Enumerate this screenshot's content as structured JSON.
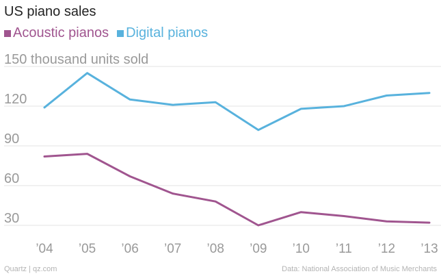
{
  "chart_data": {
    "type": "line",
    "title": "US piano sales",
    "ylabel": "thousand units sold",
    "categories": [
      "’04",
      "’05",
      "’06",
      "’07",
      "’08",
      "’09",
      "’10",
      "’11",
      "’12",
      "’13"
    ],
    "yticks": [
      30,
      60,
      90,
      120,
      150
    ],
    "ylim": [
      20,
      155
    ],
    "grid": true,
    "legend_position": "top-left",
    "series": [
      {
        "name": "Acoustic pianos",
        "color": "#a0558f",
        "values": [
          82,
          84,
          67,
          54,
          48,
          30,
          40,
          37,
          33,
          32
        ]
      },
      {
        "name": "Digital pianos",
        "color": "#58b2dd",
        "values": [
          119,
          145,
          125,
          121,
          123,
          102,
          118,
          120,
          128,
          130
        ]
      }
    ]
  },
  "footer": {
    "source_left": "Quartz | qz.com",
    "source_right": "Data: National Association of Music Merchants"
  }
}
